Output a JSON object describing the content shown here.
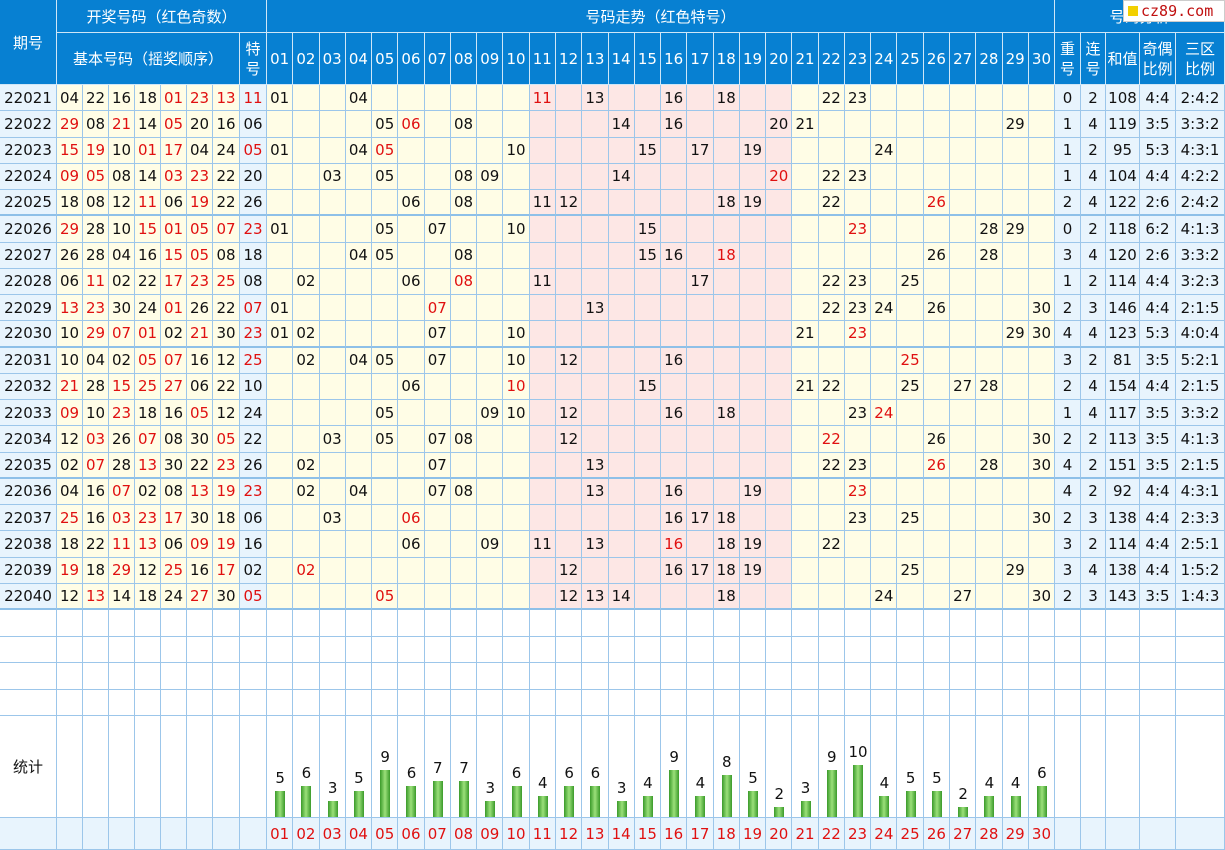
{
  "brand": "cz89.com",
  "headers": {
    "issue": "期号",
    "draw_group": "开奖号码（红色奇数）",
    "basic": "基本号码（摇奖顺序）",
    "special": [
      "特",
      "号"
    ],
    "trend_group": "号码走势（红色特号）",
    "analysis_group": "号码分析",
    "repeat": [
      "重",
      "号"
    ],
    "consecutive": [
      "连",
      "号"
    ],
    "sum": "和值",
    "odd_even": [
      "奇偶",
      "比例"
    ],
    "zones": [
      "三区",
      "比例"
    ],
    "stats": "统计"
  },
  "number_columns": [
    "01",
    "02",
    "03",
    "04",
    "05",
    "06",
    "07",
    "08",
    "09",
    "10",
    "11",
    "12",
    "13",
    "14",
    "15",
    "16",
    "17",
    "18",
    "19",
    "20",
    "21",
    "22",
    "23",
    "24",
    "25",
    "26",
    "27",
    "28",
    "29",
    "30"
  ],
  "colors": {
    "header_blue": "#0780d2",
    "red": "#e01010",
    "bar_green": "#3a9a2a",
    "yellow_zone": "#fffde6",
    "pink_zone": "#fde7e5"
  },
  "rows": [
    {
      "issue": "22021",
      "basic": [
        "04",
        "22",
        "16",
        "18",
        "01",
        "23",
        "13"
      ],
      "special": "11",
      "rep": "0",
      "con": "2",
      "sum": "108",
      "oe": "4:4",
      "zone": "2:4:2"
    },
    {
      "issue": "22022",
      "basic": [
        "29",
        "08",
        "21",
        "14",
        "05",
        "20",
        "16"
      ],
      "special": "06",
      "rep": "1",
      "con": "4",
      "sum": "119",
      "oe": "3:5",
      "zone": "3:3:2"
    },
    {
      "issue": "22023",
      "basic": [
        "15",
        "19",
        "10",
        "01",
        "17",
        "04",
        "24"
      ],
      "special": "05",
      "rep": "1",
      "con": "2",
      "sum": "95",
      "oe": "5:3",
      "zone": "4:3:1"
    },
    {
      "issue": "22024",
      "basic": [
        "09",
        "05",
        "08",
        "14",
        "03",
        "23",
        "22"
      ],
      "special": "20",
      "rep": "1",
      "con": "4",
      "sum": "104",
      "oe": "4:4",
      "zone": "4:2:2"
    },
    {
      "issue": "22025",
      "basic": [
        "18",
        "08",
        "12",
        "11",
        "06",
        "19",
        "22"
      ],
      "special": "26",
      "rep": "2",
      "con": "4",
      "sum": "122",
      "oe": "2:6",
      "zone": "2:4:2"
    },
    {
      "issue": "22026",
      "basic": [
        "29",
        "28",
        "10",
        "15",
        "01",
        "05",
        "07"
      ],
      "special": "23",
      "rep": "0",
      "con": "2",
      "sum": "118",
      "oe": "6:2",
      "zone": "4:1:3"
    },
    {
      "issue": "22027",
      "basic": [
        "26",
        "28",
        "04",
        "16",
        "15",
        "05",
        "08"
      ],
      "special": "18",
      "rep": "3",
      "con": "4",
      "sum": "120",
      "oe": "2:6",
      "zone": "3:3:2"
    },
    {
      "issue": "22028",
      "basic": [
        "06",
        "11",
        "02",
        "22",
        "17",
        "23",
        "25"
      ],
      "special": "08",
      "rep": "1",
      "con": "2",
      "sum": "114",
      "oe": "4:4",
      "zone": "3:2:3"
    },
    {
      "issue": "22029",
      "basic": [
        "13",
        "23",
        "30",
        "24",
        "01",
        "26",
        "22"
      ],
      "special": "07",
      "rep": "2",
      "con": "3",
      "sum": "146",
      "oe": "4:4",
      "zone": "2:1:5"
    },
    {
      "issue": "22030",
      "basic": [
        "10",
        "29",
        "07",
        "01",
        "02",
        "21",
        "30"
      ],
      "special": "23",
      "rep": "4",
      "con": "4",
      "sum": "123",
      "oe": "5:3",
      "zone": "4:0:4"
    },
    {
      "issue": "22031",
      "basic": [
        "10",
        "04",
        "02",
        "05",
        "07",
        "16",
        "12"
      ],
      "special": "25",
      "rep": "3",
      "con": "2",
      "sum": "81",
      "oe": "3:5",
      "zone": "5:2:1"
    },
    {
      "issue": "22032",
      "basic": [
        "21",
        "28",
        "15",
        "25",
        "27",
        "06",
        "22"
      ],
      "special": "10",
      "rep": "2",
      "con": "4",
      "sum": "154",
      "oe": "4:4",
      "zone": "2:1:5"
    },
    {
      "issue": "22033",
      "basic": [
        "09",
        "10",
        "23",
        "18",
        "16",
        "05",
        "12"
      ],
      "special": "24",
      "rep": "1",
      "con": "4",
      "sum": "117",
      "oe": "3:5",
      "zone": "3:3:2"
    },
    {
      "issue": "22034",
      "basic": [
        "12",
        "03",
        "26",
        "07",
        "08",
        "30",
        "05"
      ],
      "special": "22",
      "rep": "2",
      "con": "2",
      "sum": "113",
      "oe": "3:5",
      "zone": "4:1:3"
    },
    {
      "issue": "22035",
      "basic": [
        "02",
        "07",
        "28",
        "13",
        "30",
        "22",
        "23"
      ],
      "special": "26",
      "rep": "4",
      "con": "2",
      "sum": "151",
      "oe": "3:5",
      "zone": "2:1:5"
    },
    {
      "issue": "22036",
      "basic": [
        "04",
        "16",
        "07",
        "02",
        "08",
        "13",
        "19"
      ],
      "special": "23",
      "rep": "4",
      "con": "2",
      "sum": "92",
      "oe": "4:4",
      "zone": "4:3:1"
    },
    {
      "issue": "22037",
      "basic": [
        "25",
        "16",
        "03",
        "23",
        "17",
        "30",
        "18"
      ],
      "special": "06",
      "rep": "2",
      "con": "3",
      "sum": "138",
      "oe": "4:4",
      "zone": "2:3:3"
    },
    {
      "issue": "22038",
      "basic": [
        "18",
        "22",
        "11",
        "13",
        "06",
        "09",
        "19"
      ],
      "special": "16",
      "rep": "3",
      "con": "2",
      "sum": "114",
      "oe": "4:4",
      "zone": "2:5:1"
    },
    {
      "issue": "22039",
      "basic": [
        "19",
        "18",
        "29",
        "12",
        "25",
        "16",
        "17"
      ],
      "special": "02",
      "rep": "3",
      "con": "4",
      "sum": "138",
      "oe": "4:4",
      "zone": "1:5:2"
    },
    {
      "issue": "22040",
      "basic": [
        "12",
        "13",
        "14",
        "18",
        "24",
        "27",
        "30"
      ],
      "special": "05",
      "rep": "2",
      "con": "3",
      "sum": "143",
      "oe": "3:5",
      "zone": "1:4:3"
    }
  ],
  "chart_data": {
    "type": "bar",
    "categories": [
      "01",
      "02",
      "03",
      "04",
      "05",
      "06",
      "07",
      "08",
      "09",
      "10",
      "11",
      "12",
      "13",
      "14",
      "15",
      "16",
      "17",
      "18",
      "19",
      "20",
      "21",
      "22",
      "23",
      "24",
      "25",
      "26",
      "27",
      "28",
      "29",
      "30"
    ],
    "values": [
      5,
      6,
      3,
      5,
      9,
      6,
      7,
      7,
      3,
      6,
      4,
      6,
      6,
      3,
      4,
      9,
      4,
      8,
      5,
      2,
      3,
      9,
      10,
      4,
      5,
      5,
      2,
      4,
      4,
      6
    ],
    "title": "统计",
    "xlabel": "",
    "ylabel": "",
    "ylim": [
      0,
      10
    ]
  }
}
